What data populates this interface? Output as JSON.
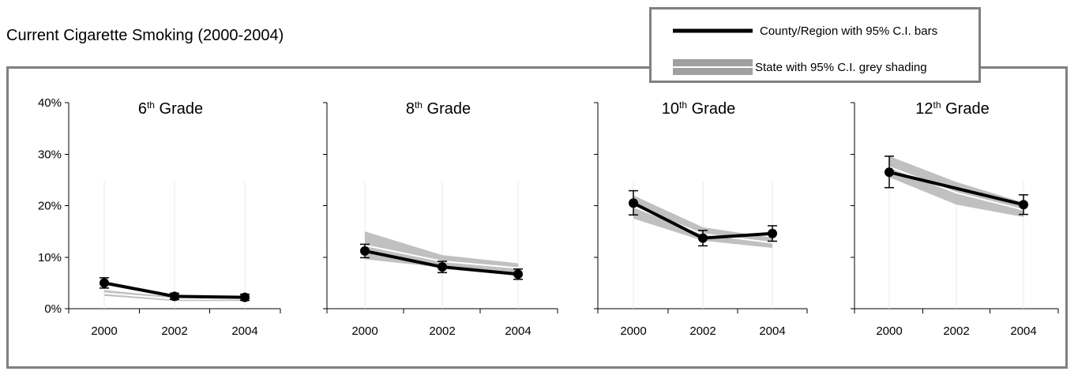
{
  "title": "Current Cigarette Smoking (2000-2004)",
  "legend": {
    "county_label": "County/Region with 95% C.I. bars",
    "state_label": "State with 95% C.I. grey shading"
  },
  "colors": {
    "county_line": "#000000",
    "state_band": "#c0c0c0",
    "state_line": "#ffffff",
    "legend_state": "#a0a0a0",
    "frame": "#808080"
  },
  "chart_data": [
    {
      "type": "line",
      "title": {
        "base": "6",
        "sup": "th",
        "rest": " Grade"
      },
      "x": [
        "2000",
        "2002",
        "2004"
      ],
      "ylim": [
        0,
        40
      ],
      "yticks": [
        "0%",
        "10%",
        "20%",
        "30%",
        "40%"
      ],
      "series": [
        {
          "name": "County/Region with 95% C.I. bars",
          "values": [
            5.0,
            2.4,
            2.2
          ],
          "ci_low": [
            4.0,
            1.8,
            1.6
          ],
          "ci_high": [
            6.0,
            3.0,
            2.8
          ]
        },
        {
          "name": "State with 95% C.I. grey shading",
          "values": [
            3.0,
            1.9,
            1.9
          ],
          "ci_low": [
            2.5,
            1.5,
            1.5
          ],
          "ci_high": [
            3.6,
            2.3,
            2.3
          ]
        }
      ]
    },
    {
      "type": "line",
      "title": {
        "base": "8",
        "sup": "th",
        "rest": " Grade"
      },
      "x": [
        "2000",
        "2002",
        "2004"
      ],
      "ylim": [
        0,
        40
      ],
      "yticks": [],
      "series": [
        {
          "name": "County/Region with 95% C.I. bars",
          "values": [
            11.2,
            8.1,
            6.7
          ],
          "ci_low": [
            9.9,
            7.0,
            5.7
          ],
          "ci_high": [
            12.5,
            9.2,
            7.7
          ]
        },
        {
          "name": "State with 95% C.I. grey shading",
          "values": [
            12.3,
            9.2,
            7.9
          ],
          "ci_low": [
            9.6,
            8.0,
            7.0
          ],
          "ci_high": [
            15.0,
            10.4,
            8.8
          ]
        }
      ]
    },
    {
      "type": "line",
      "title": {
        "base": "10",
        "sup": "th",
        "rest": " Grade"
      },
      "x": [
        "2000",
        "2002",
        "2004"
      ],
      "ylim": [
        0,
        40
      ],
      "yticks": [],
      "series": [
        {
          "name": "County/Region with 95% C.I. bars",
          "values": [
            20.5,
            13.7,
            14.6
          ],
          "ci_low": [
            18.2,
            12.2,
            13.1
          ],
          "ci_high": [
            22.9,
            15.2,
            16.1
          ]
        },
        {
          "name": "State with 95% C.I. grey shading",
          "values": [
            19.8,
            14.5,
            12.8
          ],
          "ci_low": [
            17.5,
            13.2,
            11.8
          ],
          "ci_high": [
            22.0,
            15.8,
            13.8
          ]
        }
      ]
    },
    {
      "type": "line",
      "title": {
        "base": "12",
        "sup": "th",
        "rest": " Grade"
      },
      "x": [
        "2000",
        "2002",
        "2004"
      ],
      "ylim": [
        0,
        40
      ],
      "yticks": [],
      "series": [
        {
          "name": "County/Region with 95% C.I. bars",
          "values": [
            26.5,
            null,
            20.2
          ],
          "ci_low": [
            23.5,
            null,
            18.3
          ],
          "ci_high": [
            29.6,
            null,
            22.1
          ]
        },
        {
          "name": "State with 95% C.I. grey shading",
          "values": [
            27.5,
            22.5,
            19.2
          ],
          "ci_low": [
            25.5,
            20.2,
            17.8
          ],
          "ci_high": [
            29.6,
            24.6,
            20.6
          ]
        }
      ]
    }
  ]
}
